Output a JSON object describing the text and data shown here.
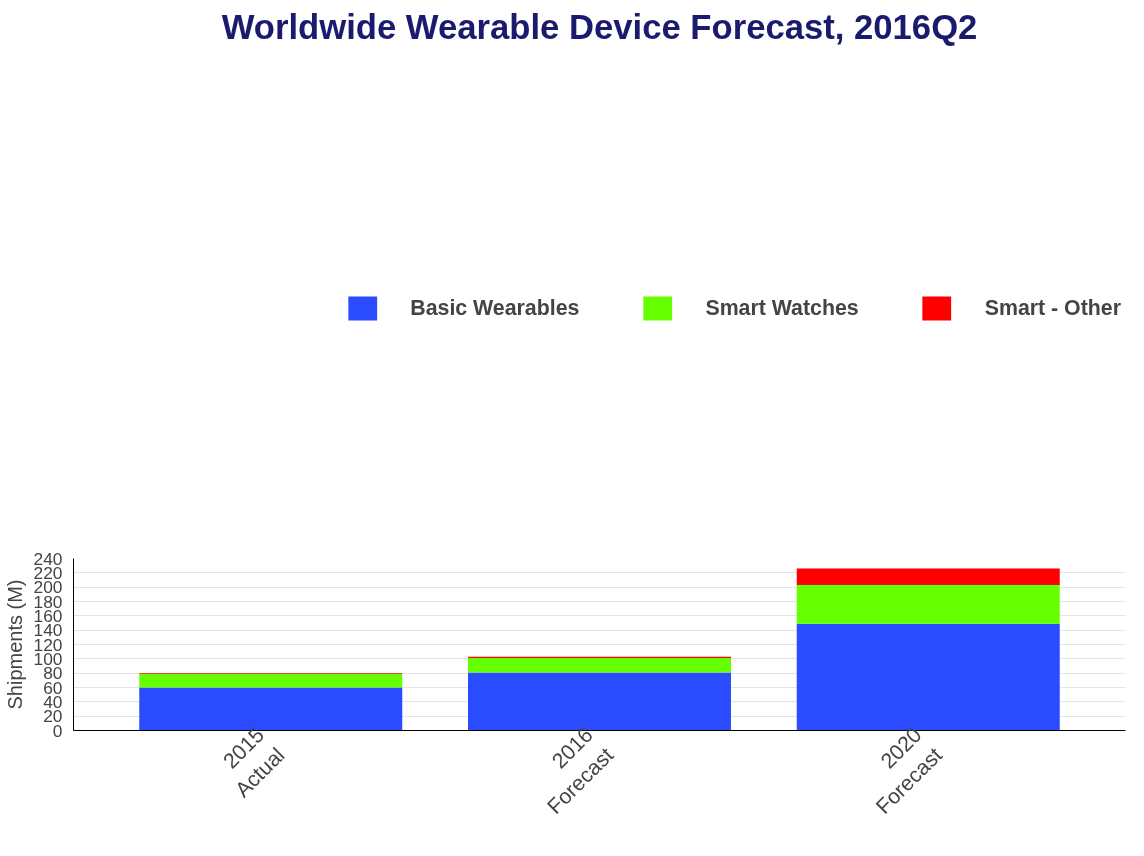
{
  "chart_data": {
    "type": "bar",
    "stacked": true,
    "title": "Worldwide Wearable Device Forecast, 2016Q2",
    "ylabel": "Shipments (M)",
    "categories": [
      "2015\nActual",
      "2016\nForecast",
      "2020\nForecast"
    ],
    "series": [
      {
        "name": "Basic Wearables",
        "color": "#2b4bff",
        "values": [
          60,
          81,
          149
        ]
      },
      {
        "name": "Smart Watches",
        "color": "#66ff00",
        "values": [
          19,
          20,
          54
        ]
      },
      {
        "name": "Smart - Other",
        "color": "#ff0000",
        "values": [
          1,
          2,
          23
        ]
      }
    ],
    "ylim": [
      0,
      240
    ],
    "yticks": [
      0,
      20,
      40,
      60,
      80,
      100,
      120,
      140,
      160,
      180,
      200,
      220,
      240
    ],
    "grid": "y",
    "legend": "top"
  }
}
